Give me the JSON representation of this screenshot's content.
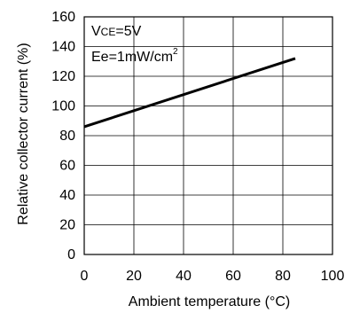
{
  "chart_data": {
    "type": "line",
    "xlabel": "Ambient temperature (°C)",
    "ylabel": "Relative collector current (%)",
    "xlim": [
      0,
      100
    ],
    "ylim": [
      0,
      160
    ],
    "xticks": [
      0,
      20,
      40,
      60,
      80,
      100
    ],
    "yticks": [
      0,
      20,
      40,
      60,
      80,
      100,
      120,
      140,
      160
    ],
    "xtick_labels": [
      "0",
      "20",
      "40",
      "60",
      "80",
      "100"
    ],
    "ytick_labels": [
      "0",
      "20",
      "40",
      "60",
      "80",
      "100",
      "120",
      "140",
      "160"
    ],
    "grid": true,
    "annotations": {
      "vce_v": "V",
      "vce_sub": "CE",
      "vce_rest": "=5V",
      "ee_main": "Ee=1mW/cm",
      "ee_sup": "2"
    },
    "series": [
      {
        "x": [
          0,
          85
        ],
        "values": [
          86,
          132
        ],
        "color": "#000000"
      }
    ]
  }
}
